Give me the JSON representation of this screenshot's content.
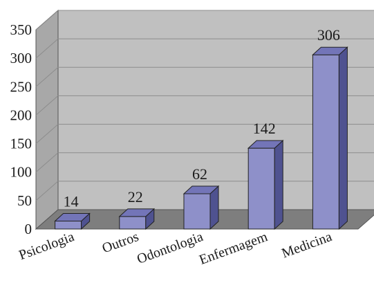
{
  "chart_data": {
    "type": "bar",
    "categories": [
      "Psicologia",
      "Outros",
      "Odontologia",
      "Enfermagem",
      "Medicina"
    ],
    "values": [
      14,
      22,
      62,
      142,
      306
    ],
    "ylim": [
      0,
      350
    ],
    "yticks": [
      0,
      50,
      100,
      150,
      200,
      250,
      300,
      350
    ],
    "grid": true,
    "three_d": true,
    "colors": {
      "bar_front": "#8e90c9",
      "bar_side": "#4f5290",
      "bar_top": "#7375b8",
      "back_wall": "#c0c0c0",
      "left_wall": "#a8a8a8",
      "floor": "#7e7e7e",
      "gridline": "#8c8c8c"
    }
  }
}
